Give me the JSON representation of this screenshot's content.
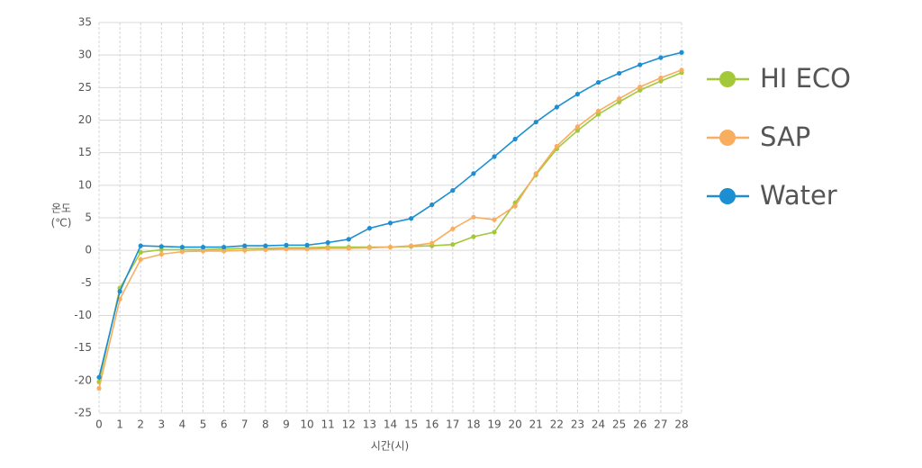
{
  "chart_data": {
    "type": "line",
    "x_label": "시간(시)",
    "y_label": [
      "온도",
      "(℃)"
    ],
    "x": [
      0,
      1,
      2,
      3,
      4,
      5,
      6,
      7,
      8,
      9,
      10,
      11,
      12,
      13,
      14,
      15,
      16,
      17,
      18,
      19,
      20,
      21,
      22,
      23,
      24,
      25,
      26,
      27,
      28
    ],
    "series": [
      {
        "name": "HI ECO",
        "color": "#a3c83a",
        "values": [
          -20.2,
          -5.8,
          -0.3,
          0.1,
          0.1,
          0.1,
          0.2,
          0.3,
          0.3,
          0.4,
          0.4,
          0.5,
          0.5,
          0.5,
          0.5,
          0.6,
          0.7,
          0.9,
          2.1,
          2.8,
          7.3,
          11.6,
          15.6,
          18.4,
          20.9,
          22.8,
          24.6,
          26.0,
          27.3
        ]
      },
      {
        "name": "SAP",
        "color": "#f8ad5f",
        "values": [
          -21.2,
          -7.5,
          -1.4,
          -0.6,
          -0.2,
          -0.1,
          -0.1,
          0.0,
          0.1,
          0.2,
          0.2,
          0.3,
          0.3,
          0.4,
          0.5,
          0.7,
          1.1,
          3.3,
          5.1,
          4.7,
          6.8,
          11.8,
          16.0,
          19.0,
          21.4,
          23.3,
          25.1,
          26.5,
          27.7
        ]
      },
      {
        "name": "Water",
        "color": "#1b8fd2",
        "values": [
          -19.5,
          -6.3,
          0.7,
          0.6,
          0.5,
          0.5,
          0.5,
          0.7,
          0.7,
          0.8,
          0.8,
          1.2,
          1.7,
          3.4,
          4.2,
          4.9,
          7.0,
          9.2,
          11.8,
          14.4,
          17.1,
          19.7,
          22.0,
          24.0,
          25.8,
          27.2,
          28.5,
          29.6,
          30.4
        ]
      }
    ],
    "xlim": [
      0,
      28
    ],
    "xticks": [
      0,
      1,
      2,
      3,
      4,
      5,
      6,
      7,
      8,
      9,
      10,
      11,
      12,
      13,
      14,
      15,
      16,
      17,
      18,
      19,
      20,
      21,
      22,
      23,
      24,
      25,
      26,
      27,
      28
    ],
    "ylim": [
      -25,
      35
    ],
    "yticks": [
      -25,
      -20,
      -15,
      -10,
      -5,
      0,
      5,
      10,
      15,
      20,
      25,
      30,
      35
    ],
    "grid": true,
    "legend": "right"
  }
}
